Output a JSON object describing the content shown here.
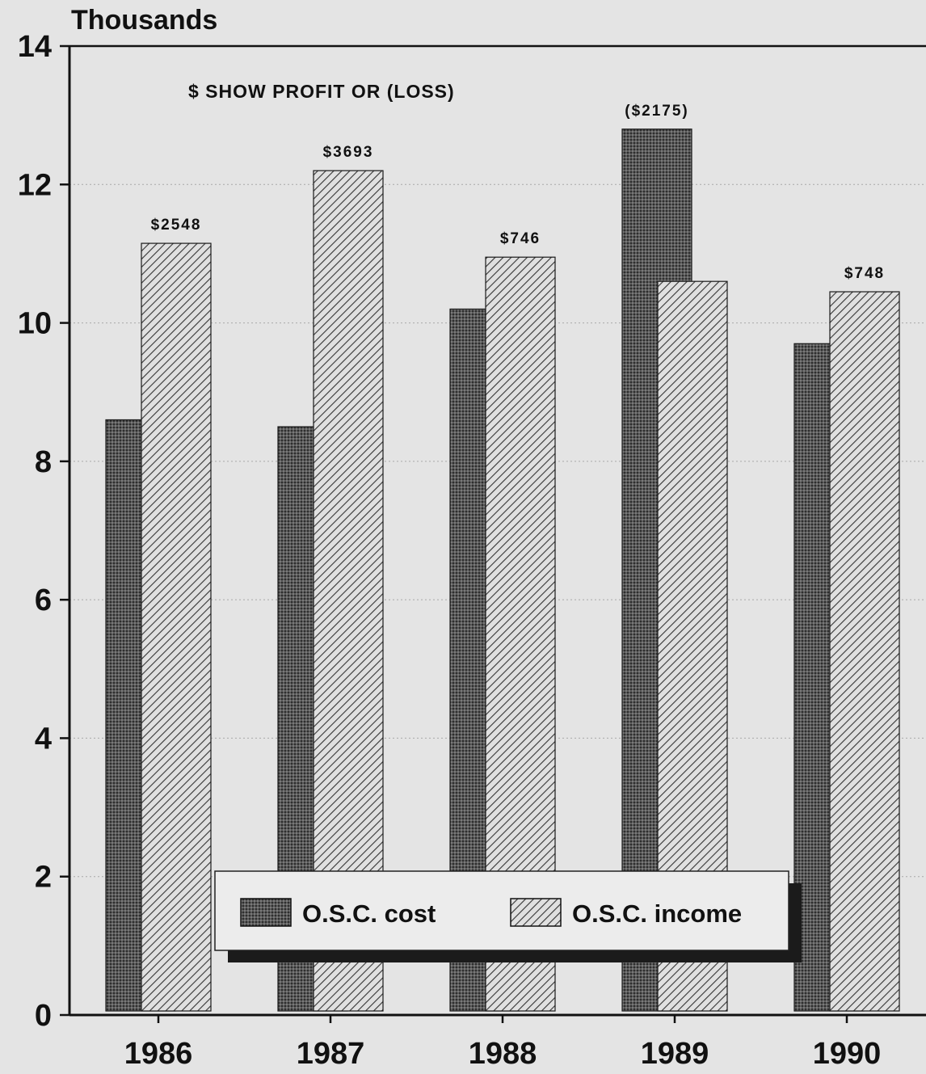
{
  "chart_data": {
    "type": "bar",
    "categories": [
      "1986",
      "1987",
      "1988",
      "1989",
      "1990"
    ],
    "series": [
      {
        "name": "O.S.C. cost",
        "values": [
          8.6,
          8.5,
          10.2,
          12.8,
          9.7
        ]
      },
      {
        "name": "O.S.C. income",
        "values": [
          11.15,
          12.2,
          10.95,
          10.6,
          10.45
        ]
      }
    ],
    "data_labels": [
      "$2548",
      "$3693",
      "$746",
      "($2175)",
      "$748"
    ],
    "data_label_series": "max",
    "annotation": "$ SHOW PROFIT OR (LOSS)",
    "ylabel": "Thousands",
    "xlabel": "",
    "ylim": [
      0,
      14
    ],
    "yticks": [
      "0",
      "2",
      "4",
      "6",
      "8",
      "10",
      "12",
      "14"
    ],
    "grid": true,
    "legend_position": "bottom-center",
    "colors": {
      "background": "#e4e4e4",
      "cost": "#5a5a5a",
      "income": "#d2d2d2",
      "axis": "#111111"
    }
  }
}
